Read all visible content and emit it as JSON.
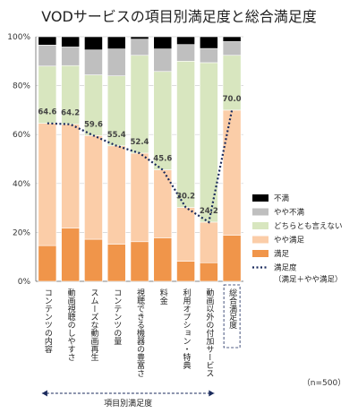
{
  "chart_data": {
    "type": "bar",
    "title": "VODサービスの項目別満足度と総合満足度",
    "ylim": [
      0,
      100
    ],
    "y_ticks": [
      "0%",
      "20%",
      "40%",
      "60%",
      "80%",
      "100%"
    ],
    "categories": [
      "コンテンツの内容",
      "動画視聴のしやすさ",
      "スムーズな動画再生",
      "コンテンツの量",
      "視聴できる機器の豊富さ",
      "料金",
      "利用オプション・特典",
      "動画以外の付加サービス",
      "総合満足度"
    ],
    "series": [
      {
        "name": "満足",
        "color": "#f0954a",
        "values": [
          14.6,
          21.8,
          17.2,
          15.2,
          16.2,
          17.8,
          8.2,
          7.6,
          18.8
        ]
      },
      {
        "name": "やや満足",
        "color": "#fbcda8",
        "values": [
          50.0,
          42.4,
          42.4,
          40.2,
          36.2,
          27.8,
          22.0,
          16.6,
          51.2
        ]
      },
      {
        "name": "どちらとも言えない",
        "color": "#d8e6bf",
        "values": [
          23.4,
          24.0,
          24.8,
          28.6,
          40.0,
          40.2,
          59.8,
          65.2,
          22.4
        ]
      },
      {
        "name": "やや不満",
        "color": "#bfbfbf",
        "values": [
          8.6,
          7.6,
          10.2,
          11.0,
          6.6,
          9.2,
          6.8,
          5.8,
          5.6
        ]
      },
      {
        "name": "不満",
        "color": "#000000",
        "values": [
          3.4,
          4.2,
          5.4,
          5.0,
          1.0,
          5.0,
          3.2,
          4.8,
          2.0
        ]
      }
    ],
    "line": {
      "name": "満足度",
      "name_note": "（満足＋やや満足）",
      "values": [
        64.6,
        64.2,
        59.6,
        55.4,
        52.4,
        45.6,
        30.2,
        24.2,
        70.0
      ],
      "labels": [
        "64.6",
        "64.2",
        "59.6",
        "55.4",
        "52.4",
        "45.6",
        "30.2",
        "24.2",
        "70.0"
      ]
    },
    "group_label": "項目別満足度",
    "note": "（n=500）",
    "legend_position": "right"
  }
}
